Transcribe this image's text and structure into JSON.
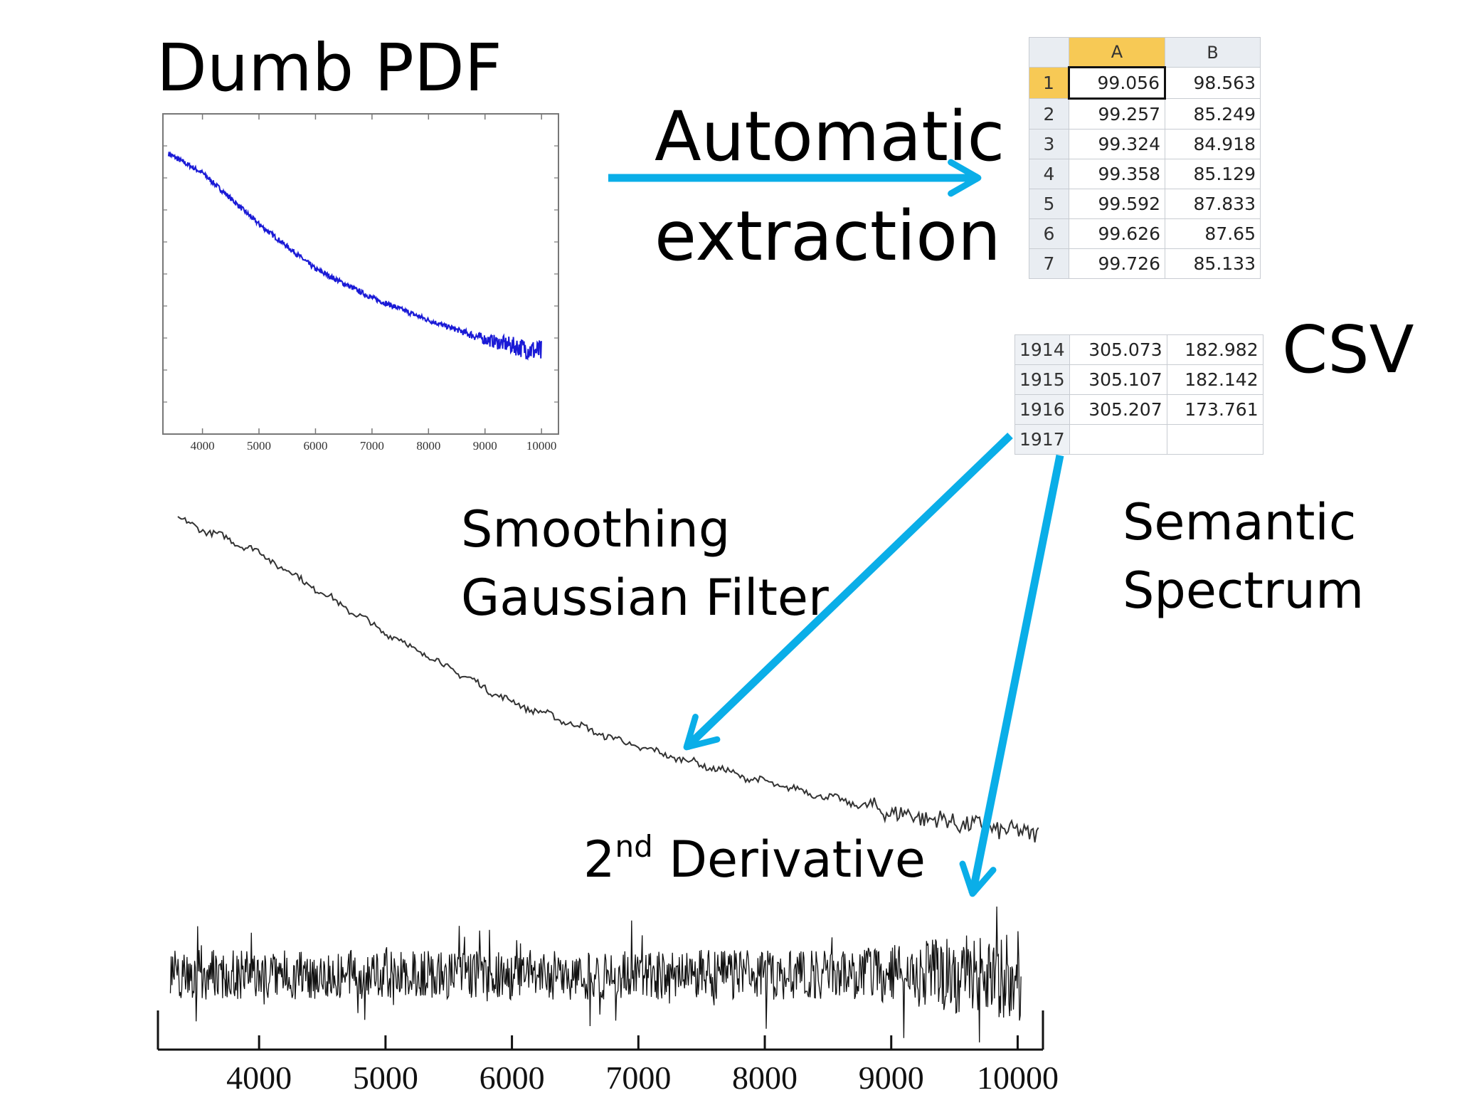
{
  "labels": {
    "dumb_pdf": "Dumb PDF",
    "automatic_line1": "Automatic",
    "automatic_line2": "extraction",
    "csv": "CSV",
    "smoothing_line1": "Smoothing",
    "smoothing_line2": "Gaussian Filter",
    "semantic_line1": "Semantic",
    "semantic_line2": "Spectrum",
    "derivative_prefix": "2",
    "derivative_sup": "nd",
    "derivative_suffix": " Derivative"
  },
  "spreadsheet_top": {
    "columns": [
      "A",
      "B"
    ],
    "rows": [
      {
        "row": "1",
        "a": "99.056",
        "b": "98.563"
      },
      {
        "row": "2",
        "a": "99.257",
        "b": "85.249"
      },
      {
        "row": "3",
        "a": "99.324",
        "b": "84.918"
      },
      {
        "row": "4",
        "a": "99.358",
        "b": "85.129"
      },
      {
        "row": "5",
        "a": "99.592",
        "b": "87.833"
      },
      {
        "row": "6",
        "a": "99.626",
        "b": "87.65"
      },
      {
        "row": "7",
        "a": "99.726",
        "b": "85.133"
      }
    ]
  },
  "spreadsheet_bottom": {
    "rows": [
      {
        "row": "1914",
        "a": "305.073",
        "b": "182.982"
      },
      {
        "row": "1915",
        "a": "305.107",
        "b": "182.142"
      },
      {
        "row": "1916",
        "a": "305.207",
        "b": "173.761"
      },
      {
        "row": "1917",
        "a": "",
        "b": ""
      }
    ]
  },
  "colors": {
    "arrow": "#0aaee8",
    "pdf_plot_line": "#1a1ad6",
    "selected_header": "#f7c955"
  },
  "chart_data": [
    {
      "type": "line",
      "role": "pdf-plot",
      "x_ticks": [
        "4000",
        "5000",
        "6000",
        "7000",
        "8000",
        "9000",
        "10000"
      ],
      "xlim": [
        3300,
        10300
      ],
      "series": [
        {
          "x": [
            3400,
            4000,
            5000,
            6000,
            7000,
            8000,
            9000,
            10000
          ],
          "values": [
            0.92,
            0.86,
            0.7,
            0.56,
            0.47,
            0.4,
            0.34,
            0.3
          ]
        }
      ]
    },
    {
      "type": "line",
      "role": "smoothed-spectrum",
      "xlim": [
        3300,
        10300
      ],
      "series": [
        {
          "x": [
            3400,
            4000,
            5000,
            6000,
            7000,
            8000,
            9000,
            10000
          ],
          "values": [
            0.92,
            0.86,
            0.7,
            0.56,
            0.47,
            0.4,
            0.34,
            0.3
          ]
        }
      ]
    },
    {
      "type": "line",
      "role": "second-derivative",
      "x_ticks": [
        "4000",
        "5000",
        "6000",
        "7000",
        "8000",
        "9000",
        "10000"
      ],
      "xlim": [
        3300,
        10300
      ]
    }
  ]
}
